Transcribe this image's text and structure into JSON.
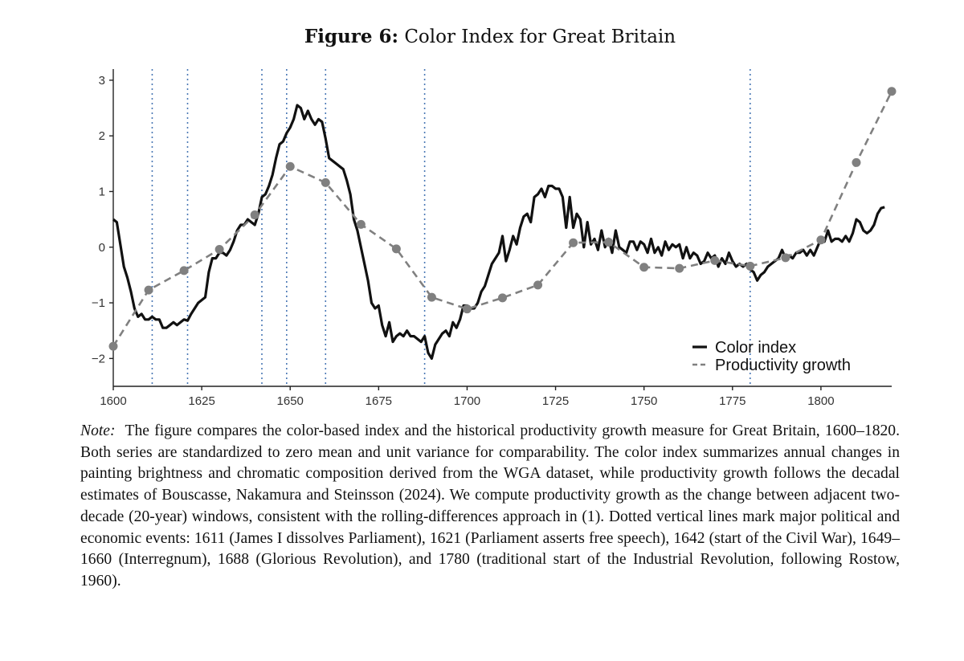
{
  "figure": {
    "label": "Figure 6:",
    "title": "Color Index for Great Britain"
  },
  "chart_data": {
    "type": "line",
    "title": "Color Index for Great Britain",
    "xlabel": "",
    "ylabel": "",
    "xlim": [
      1600,
      1820
    ],
    "ylim": [
      -2.5,
      3.2
    ],
    "x_ticks": [
      1600,
      1625,
      1650,
      1675,
      1700,
      1725,
      1750,
      1775,
      1800
    ],
    "x_tick_labels": [
      "1600",
      "1625",
      "1650",
      "1675",
      "1700",
      "1725",
      "1750",
      "1775",
      "1800"
    ],
    "y_ticks": [
      -2,
      -1,
      0,
      1,
      2,
      3
    ],
    "y_tick_labels": [
      "−2",
      "−1",
      "0",
      "1",
      "2",
      "3"
    ],
    "legend_position": "bottom-right",
    "event_lines": [
      1611,
      1621,
      1642,
      1649,
      1660,
      1688,
      1780
    ],
    "series": [
      {
        "name": "Color index",
        "style": "solid",
        "color": "#111111",
        "points": [
          [
            1600,
            0.5
          ],
          [
            1601,
            0.45
          ],
          [
            1602,
            0.05
          ],
          [
            1603,
            -0.35
          ],
          [
            1604,
            -0.55
          ],
          [
            1605,
            -0.8
          ],
          [
            1606,
            -1.1
          ],
          [
            1607,
            -1.25
          ],
          [
            1608,
            -1.2
          ],
          [
            1609,
            -1.3
          ],
          [
            1610,
            -1.3
          ],
          [
            1611,
            -1.25
          ],
          [
            1612,
            -1.3
          ],
          [
            1613,
            -1.3
          ],
          [
            1614,
            -1.45
          ],
          [
            1615,
            -1.45
          ],
          [
            1616,
            -1.4
          ],
          [
            1617,
            -1.35
          ],
          [
            1618,
            -1.4
          ],
          [
            1619,
            -1.35
          ],
          [
            1620,
            -1.3
          ],
          [
            1621,
            -1.32
          ],
          [
            1622,
            -1.2
          ],
          [
            1623,
            -1.1
          ],
          [
            1624,
            -1.0
          ],
          [
            1625,
            -0.95
          ],
          [
            1626,
            -0.9
          ],
          [
            1627,
            -0.45
          ],
          [
            1628,
            -0.2
          ],
          [
            1629,
            -0.2
          ],
          [
            1630,
            -0.1
          ],
          [
            1631,
            -0.1
          ],
          [
            1632,
            -0.15
          ],
          [
            1633,
            -0.05
          ],
          [
            1634,
            0.1
          ],
          [
            1635,
            0.3
          ],
          [
            1636,
            0.4
          ],
          [
            1637,
            0.4
          ],
          [
            1638,
            0.5
          ],
          [
            1639,
            0.45
          ],
          [
            1640,
            0.4
          ],
          [
            1641,
            0.6
          ],
          [
            1642,
            0.9
          ],
          [
            1643,
            0.95
          ],
          [
            1644,
            1.1
          ],
          [
            1645,
            1.3
          ],
          [
            1646,
            1.6
          ],
          [
            1647,
            1.85
          ],
          [
            1648,
            1.9
          ],
          [
            1649,
            2.05
          ],
          [
            1650,
            2.15
          ],
          [
            1651,
            2.3
          ],
          [
            1652,
            2.55
          ],
          [
            1653,
            2.5
          ],
          [
            1654,
            2.3
          ],
          [
            1655,
            2.45
          ],
          [
            1656,
            2.3
          ],
          [
            1657,
            2.2
          ],
          [
            1658,
            2.3
          ],
          [
            1659,
            2.25
          ],
          [
            1660,
            1.95
          ],
          [
            1661,
            1.6
          ],
          [
            1662,
            1.55
          ],
          [
            1663,
            1.5
          ],
          [
            1664,
            1.45
          ],
          [
            1665,
            1.4
          ],
          [
            1666,
            1.2
          ],
          [
            1667,
            0.95
          ],
          [
            1668,
            0.5
          ],
          [
            1669,
            0.3
          ],
          [
            1670,
            0.0
          ],
          [
            1671,
            -0.3
          ],
          [
            1672,
            -0.6
          ],
          [
            1673,
            -1.0
          ],
          [
            1674,
            -1.1
          ],
          [
            1675,
            -1.05
          ],
          [
            1676,
            -1.4
          ],
          [
            1677,
            -1.6
          ],
          [
            1678,
            -1.35
          ],
          [
            1679,
            -1.7
          ],
          [
            1680,
            -1.6
          ],
          [
            1681,
            -1.55
          ],
          [
            1682,
            -1.6
          ],
          [
            1683,
            -1.5
          ],
          [
            1684,
            -1.6
          ],
          [
            1685,
            -1.6
          ],
          [
            1686,
            -1.65
          ],
          [
            1687,
            -1.7
          ],
          [
            1688,
            -1.6
          ],
          [
            1689,
            -1.9
          ],
          [
            1690,
            -2.0
          ],
          [
            1691,
            -1.75
          ],
          [
            1692,
            -1.65
          ],
          [
            1693,
            -1.55
          ],
          [
            1694,
            -1.5
          ],
          [
            1695,
            -1.6
          ],
          [
            1696,
            -1.35
          ],
          [
            1697,
            -1.45
          ],
          [
            1698,
            -1.3
          ],
          [
            1699,
            -1.05
          ],
          [
            1700,
            -1.05
          ],
          [
            1701,
            -1.1
          ],
          [
            1702,
            -1.1
          ],
          [
            1703,
            -1.0
          ],
          [
            1704,
            -0.8
          ],
          [
            1705,
            -0.7
          ],
          [
            1706,
            -0.5
          ],
          [
            1707,
            -0.3
          ],
          [
            1708,
            -0.2
          ],
          [
            1709,
            -0.1
          ],
          [
            1710,
            0.2
          ],
          [
            1711,
            -0.25
          ],
          [
            1712,
            -0.05
          ],
          [
            1713,
            0.2
          ],
          [
            1714,
            0.05
          ],
          [
            1715,
            0.35
          ],
          [
            1716,
            0.55
          ],
          [
            1717,
            0.6
          ],
          [
            1718,
            0.45
          ],
          [
            1719,
            0.9
          ],
          [
            1720,
            0.95
          ],
          [
            1721,
            1.05
          ],
          [
            1722,
            0.9
          ],
          [
            1723,
            1.1
          ],
          [
            1724,
            1.1
          ],
          [
            1725,
            1.05
          ],
          [
            1726,
            1.05
          ],
          [
            1727,
            0.9
          ],
          [
            1728,
            0.35
          ],
          [
            1729,
            0.9
          ],
          [
            1730,
            0.35
          ],
          [
            1731,
            0.6
          ],
          [
            1732,
            0.5
          ],
          [
            1733,
            0.0
          ],
          [
            1734,
            0.45
          ],
          [
            1735,
            0.05
          ],
          [
            1736,
            0.15
          ],
          [
            1737,
            -0.05
          ],
          [
            1738,
            0.3
          ],
          [
            1739,
            0.0
          ],
          [
            1740,
            0.15
          ],
          [
            1741,
            -0.1
          ],
          [
            1742,
            0.3
          ],
          [
            1743,
            0.0
          ],
          [
            1744,
            -0.05
          ],
          [
            1745,
            -0.1
          ],
          [
            1746,
            0.1
          ],
          [
            1747,
            0.1
          ],
          [
            1748,
            -0.05
          ],
          [
            1749,
            0.1
          ],
          [
            1750,
            0.05
          ],
          [
            1751,
            -0.1
          ],
          [
            1752,
            0.15
          ],
          [
            1753,
            -0.1
          ],
          [
            1754,
            0.0
          ],
          [
            1755,
            -0.15
          ],
          [
            1756,
            0.1
          ],
          [
            1757,
            -0.05
          ],
          [
            1758,
            0.05
          ],
          [
            1759,
            0.0
          ],
          [
            1760,
            0.05
          ],
          [
            1761,
            -0.2
          ],
          [
            1762,
            0.0
          ],
          [
            1763,
            -0.2
          ],
          [
            1764,
            -0.1
          ],
          [
            1765,
            -0.15
          ],
          [
            1766,
            -0.3
          ],
          [
            1767,
            -0.25
          ],
          [
            1768,
            -0.1
          ],
          [
            1769,
            -0.2
          ],
          [
            1770,
            -0.15
          ],
          [
            1771,
            -0.35
          ],
          [
            1772,
            -0.2
          ],
          [
            1773,
            -0.3
          ],
          [
            1774,
            -0.1
          ],
          [
            1775,
            -0.25
          ],
          [
            1776,
            -0.35
          ],
          [
            1777,
            -0.3
          ],
          [
            1778,
            -0.35
          ],
          [
            1779,
            -0.3
          ],
          [
            1780,
            -0.4
          ],
          [
            1781,
            -0.45
          ],
          [
            1782,
            -0.6
          ],
          [
            1783,
            -0.5
          ],
          [
            1784,
            -0.45
          ],
          [
            1785,
            -0.35
          ],
          [
            1786,
            -0.3
          ],
          [
            1787,
            -0.25
          ],
          [
            1788,
            -0.2
          ],
          [
            1789,
            -0.05
          ],
          [
            1790,
            -0.2
          ],
          [
            1791,
            -0.15
          ],
          [
            1792,
            -0.2
          ],
          [
            1793,
            -0.1
          ],
          [
            1794,
            -0.1
          ],
          [
            1795,
            -0.05
          ],
          [
            1796,
            -0.15
          ],
          [
            1797,
            -0.05
          ],
          [
            1798,
            -0.15
          ],
          [
            1799,
            0.0
          ],
          [
            1800,
            0.15
          ],
          [
            1801,
            0.1
          ],
          [
            1802,
            0.3
          ],
          [
            1803,
            0.1
          ],
          [
            1804,
            0.15
          ],
          [
            1805,
            0.15
          ],
          [
            1806,
            0.1
          ],
          [
            1807,
            0.2
          ],
          [
            1808,
            0.1
          ],
          [
            1809,
            0.25
          ],
          [
            1810,
            0.5
          ],
          [
            1811,
            0.45
          ],
          [
            1812,
            0.3
          ],
          [
            1813,
            0.25
          ],
          [
            1814,
            0.3
          ],
          [
            1815,
            0.4
          ],
          [
            1816,
            0.6
          ],
          [
            1817,
            0.7
          ],
          [
            1818,
            0.72
          ]
        ]
      },
      {
        "name": "Productivity growth",
        "style": "dashed",
        "color": "#808080",
        "points": [
          [
            1600,
            -1.78
          ],
          [
            1610,
            -0.77
          ],
          [
            1620,
            -0.42
          ],
          [
            1630,
            -0.04
          ],
          [
            1640,
            0.58
          ],
          [
            1650,
            1.45
          ],
          [
            1660,
            1.16
          ],
          [
            1670,
            0.41
          ],
          [
            1680,
            -0.03
          ],
          [
            1690,
            -0.9
          ],
          [
            1700,
            -1.11
          ],
          [
            1710,
            -0.91
          ],
          [
            1720,
            -0.68
          ],
          [
            1730,
            0.08
          ],
          [
            1740,
            0.09
          ],
          [
            1750,
            -0.36
          ],
          [
            1760,
            -0.38
          ],
          [
            1770,
            -0.24
          ],
          [
            1780,
            -0.34
          ],
          [
            1790,
            -0.19
          ],
          [
            1800,
            0.13
          ],
          [
            1810,
            1.52
          ],
          [
            1820,
            2.8
          ]
        ]
      }
    ]
  },
  "note": {
    "label": "Note:",
    "text": "The figure compares the color-based index and the historical productivity growth measure for Great Britain, 1600–1820. Both series are standardized to zero mean and unit variance for comparability. The color index summarizes annual changes in painting brightness and chromatic composition derived from the WGA dataset, while productivity growth follows the decadal estimates of Bouscasse, Nakamura and Steinsson (2024). We compute productivity growth as the change between adjacent two-decade (20-year) windows, consistent with the rolling-differences approach in (1). Dotted vertical lines mark major political and economic events: 1611 (James I dissolves Parliament), 1621 (Parliament asserts free speech), 1642 (start of the Civil War), 1649–1660 (Interregnum), 1688 (Glorious Revolution), and 1780 (traditional start of the Industrial Revolution, following Rostow, 1960)."
  }
}
